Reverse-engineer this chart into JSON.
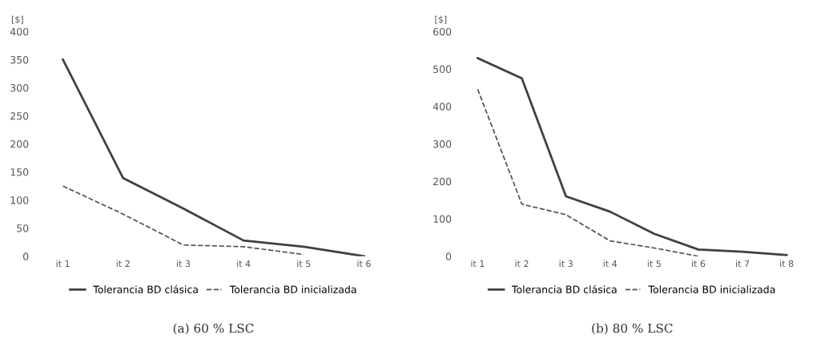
{
  "chart_data": [
    {
      "type": "line",
      "ylabel": "[$]",
      "categories": [
        "it 1",
        "it 2",
        "it 3",
        "it 4",
        "it 5",
        "it 6"
      ],
      "ylim": [
        0,
        400
      ],
      "yticks": [
        0,
        50,
        100,
        150,
        200,
        250,
        300,
        350,
        400
      ],
      "grid": false,
      "legend": "bottom",
      "annotations": [
        "(a) 60 % LSC"
      ],
      "series": [
        {
          "name": "Tolerancia BD clásica",
          "color": "#404040",
          "line_style": "solid",
          "values": [
            350,
            139,
            85,
            28,
            17,
            0
          ]
        },
        {
          "name": "Tolerancia BD inicializada",
          "color": "#505050",
          "line_style": "dashed",
          "values": [
            125,
            75,
            20,
            17,
            3,
            null
          ]
        }
      ]
    },
    {
      "type": "line",
      "ylabel": "[$]",
      "categories": [
        "it 1",
        "it 2",
        "it 3",
        "it 4",
        "it 5",
        "it 6",
        "it 7",
        "it 8"
      ],
      "ylim": [
        0,
        600
      ],
      "yticks": [
        0,
        100,
        200,
        300,
        400,
        500,
        600
      ],
      "grid": false,
      "legend": "bottom",
      "annotations": [
        "(b) 80 % LSC"
      ],
      "series": [
        {
          "name": "Tolerancia BD clásica",
          "color": "#404040",
          "line_style": "solid",
          "values": [
            529,
            475,
            160,
            119,
            60,
            18,
            12,
            3
          ]
        },
        {
          "name": "Tolerancia BD inicializada",
          "color": "#505050",
          "line_style": "dashed",
          "values": [
            446,
            139,
            111,
            41,
            22,
            0,
            null,
            null
          ]
        }
      ]
    }
  ]
}
